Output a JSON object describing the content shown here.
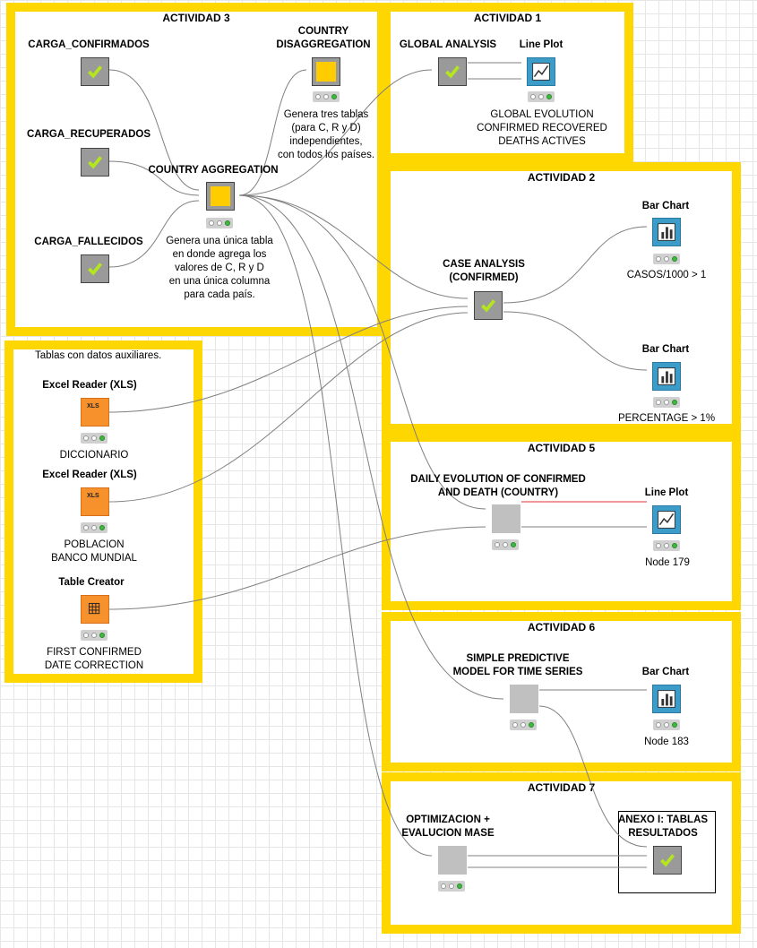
{
  "annotations": {
    "act3": {
      "title": "ACTIVIDAD 3"
    },
    "act1": {
      "title": "ACTIVIDAD 1"
    },
    "act2": {
      "title": "ACTIVIDAD 2"
    },
    "aux": {
      "title": "Tablas con datos auxiliares."
    },
    "act5": {
      "title": "ACTIVIDAD 5"
    },
    "act6": {
      "title": "ACTIVIDAD 6"
    },
    "act7": {
      "title": "ACTIVIDAD 7"
    }
  },
  "nodes": {
    "carga_confirmados": {
      "label": "CARGA_CONFIRMADOS"
    },
    "carga_recuperados": {
      "label": "CARGA_RECUPERADOS"
    },
    "carga_fallecidos": {
      "label": "CARGA_FALLECIDOS"
    },
    "country_aggregation": {
      "label": "COUNTRY AGGREGATION",
      "note": [
        "Genera una única tabla",
        "en donde agrega los",
        "valores de C, R y D",
        "en una única columna",
        "para cada país."
      ]
    },
    "country_disaggregation": {
      "label": [
        "COUNTRY",
        "DISAGGREGATION"
      ],
      "note": [
        "Genera tres tablas",
        "(para C, R y D)",
        "independientes,",
        "con todos los países."
      ]
    },
    "global_analysis": {
      "label": "GLOBAL ANALYSIS"
    },
    "line_plot_1": {
      "label": "Line Plot",
      "note": [
        "GLOBAL EVOLUTION",
        "CONFIRMED RECOVERED",
        "DEATHS ACTIVES"
      ]
    },
    "case_analysis": {
      "label": [
        "CASE ANALYSIS",
        "(CONFIRMED)"
      ]
    },
    "bar_chart_1": {
      "label": "Bar Chart",
      "note": "CASOS/1000 > 1"
    },
    "bar_chart_2": {
      "label": "Bar Chart",
      "note": "PERCENTAGE > 1%"
    },
    "excel_reader_1": {
      "label": "Excel Reader (XLS)",
      "note": "DICCIONARIO"
    },
    "excel_reader_2": {
      "label": "Excel Reader (XLS)",
      "note": [
        "POBLACION",
        "BANCO MUNDIAL"
      ]
    },
    "table_creator": {
      "label": "Table Creator",
      "note": [
        "FIRST CONFIRMED",
        "DATE CORRECTION"
      ]
    },
    "daily_evolution": {
      "label": [
        "DAILY EVOLUTION OF CONFIRMED",
        "AND DEATH (COUNTRY)"
      ]
    },
    "line_plot_2": {
      "label": "Line Plot",
      "note": "Node 179"
    },
    "simple_predictive": {
      "label": [
        "SIMPLE PREDICTIVE",
        "MODEL FOR TIME SERIES"
      ]
    },
    "bar_chart_3": {
      "label": "Bar Chart",
      "note": "Node 183"
    },
    "optimizacion": {
      "label": [
        "OPTIMIZACION +",
        "EVALUCION MASE"
      ]
    },
    "anexo": {
      "label": [
        "ANEXO I: TABLAS",
        "RESULTADOS"
      ]
    }
  },
  "icons": {
    "xls": "XLS"
  },
  "colors": {
    "annotation_border": "#ffd700",
    "metanode_fill": "#ffcc00",
    "view_node": "#3c9cc8",
    "source_node": "#f7912b",
    "status_green": "#3cbb3c"
  }
}
